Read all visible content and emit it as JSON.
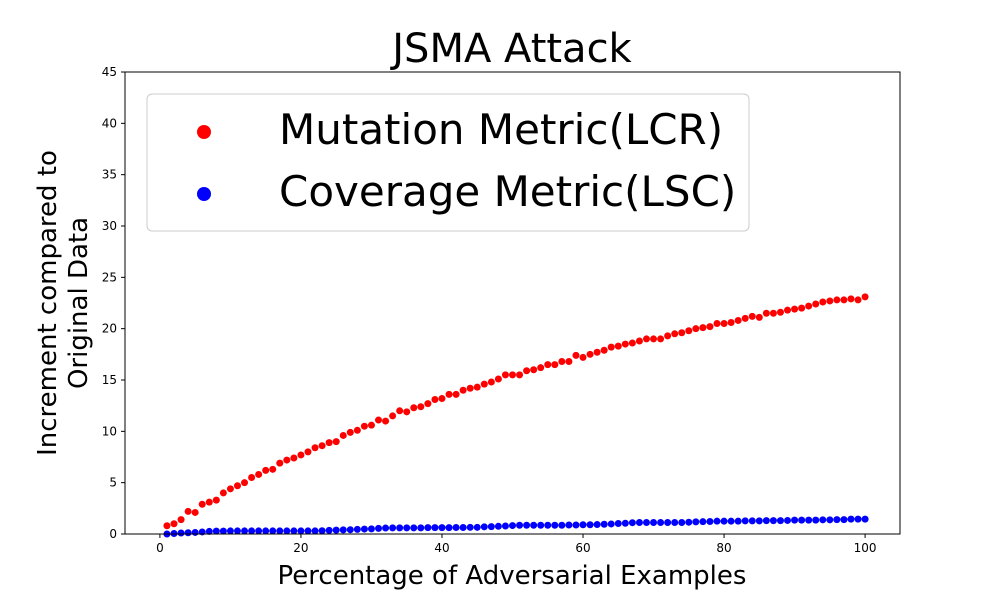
{
  "chart_data": {
    "type": "scatter",
    "title": "JSMA Attack",
    "xlabel": "Percentage of Adversarial Examples",
    "ylabel_lines": [
      "Increment compared to",
      "Original Data"
    ],
    "xlim": [
      -4.95,
      104.95
    ],
    "ylim": [
      0,
      45
    ],
    "xticks": [
      0,
      20,
      40,
      60,
      80,
      100
    ],
    "yticks": [
      0,
      5,
      10,
      15,
      20,
      25,
      30,
      35,
      40,
      45
    ],
    "grid": false,
    "legend_position": "upper-left",
    "series": [
      {
        "name": "Mutation Metric(LCR)",
        "color": "#ff0000",
        "x": [
          1,
          2,
          3,
          4,
          5,
          6,
          7,
          8,
          9,
          10,
          11,
          12,
          13,
          14,
          15,
          16,
          17,
          18,
          19,
          20,
          21,
          22,
          23,
          24,
          25,
          26,
          27,
          28,
          29,
          30,
          31,
          32,
          33,
          34,
          35,
          36,
          37,
          38,
          39,
          40,
          41,
          42,
          43,
          44,
          45,
          46,
          47,
          48,
          49,
          50,
          51,
          52,
          53,
          54,
          55,
          56,
          57,
          58,
          59,
          60,
          61,
          62,
          63,
          64,
          65,
          66,
          67,
          68,
          69,
          70,
          71,
          72,
          73,
          74,
          75,
          76,
          77,
          78,
          79,
          80,
          81,
          82,
          83,
          84,
          85,
          86,
          87,
          88,
          89,
          90,
          91,
          92,
          93,
          94,
          95,
          96,
          97,
          98,
          99,
          100
        ],
        "y": [
          0.8,
          1.0,
          1.4,
          2.2,
          2.1,
          2.9,
          3.1,
          3.3,
          4.0,
          4.4,
          4.7,
          5.0,
          5.5,
          5.8,
          6.2,
          6.3,
          6.9,
          7.2,
          7.4,
          7.7,
          8.0,
          8.4,
          8.6,
          8.9,
          9.0,
          9.6,
          9.9,
          10.1,
          10.5,
          10.6,
          11.1,
          11.0,
          11.5,
          12.0,
          11.9,
          12.3,
          12.4,
          12.7,
          13.1,
          13.2,
          13.6,
          13.6,
          14.0,
          14.2,
          14.3,
          14.6,
          14.8,
          15.1,
          15.5,
          15.5,
          15.5,
          15.9,
          16.0,
          16.2,
          16.5,
          16.5,
          16.8,
          16.8,
          17.4,
          17.2,
          17.5,
          17.7,
          17.9,
          18.2,
          18.3,
          18.5,
          18.6,
          18.8,
          19.0,
          19.0,
          19.0,
          19.3,
          19.5,
          19.6,
          19.8,
          20.0,
          20.1,
          20.2,
          20.5,
          20.5,
          20.6,
          20.8,
          21.0,
          21.2,
          21.1,
          21.5,
          21.5,
          21.6,
          21.8,
          21.9,
          22.0,
          22.2,
          22.4,
          22.6,
          22.7,
          22.8,
          22.8,
          22.9,
          22.8,
          23.1
        ]
      },
      {
        "name": "Coverage Metric(LSC)",
        "color": "#0000ff",
        "x": [
          1,
          2,
          3,
          4,
          5,
          6,
          7,
          8,
          9,
          10,
          11,
          12,
          13,
          14,
          15,
          16,
          17,
          18,
          19,
          20,
          21,
          22,
          23,
          24,
          25,
          26,
          27,
          28,
          29,
          30,
          31,
          32,
          33,
          34,
          35,
          36,
          37,
          38,
          39,
          40,
          41,
          42,
          43,
          44,
          45,
          46,
          47,
          48,
          49,
          50,
          51,
          52,
          53,
          54,
          55,
          56,
          57,
          58,
          59,
          60,
          61,
          62,
          63,
          64,
          65,
          66,
          67,
          68,
          69,
          70,
          71,
          72,
          73,
          74,
          75,
          76,
          77,
          78,
          79,
          80,
          81,
          82,
          83,
          84,
          85,
          86,
          87,
          88,
          89,
          90,
          91,
          92,
          93,
          94,
          95,
          96,
          97,
          98,
          99,
          100
        ],
        "y": [
          0.0,
          0.05,
          0.1,
          0.12,
          0.15,
          0.2,
          0.25,
          0.28,
          0.28,
          0.3,
          0.3,
          0.3,
          0.3,
          0.3,
          0.3,
          0.3,
          0.3,
          0.3,
          0.3,
          0.3,
          0.3,
          0.3,
          0.32,
          0.35,
          0.38,
          0.4,
          0.42,
          0.45,
          0.48,
          0.5,
          0.55,
          0.58,
          0.6,
          0.6,
          0.6,
          0.6,
          0.6,
          0.62,
          0.62,
          0.62,
          0.62,
          0.63,
          0.63,
          0.65,
          0.65,
          0.7,
          0.72,
          0.75,
          0.78,
          0.82,
          0.85,
          0.85,
          0.85,
          0.85,
          0.85,
          0.85,
          0.85,
          0.88,
          0.88,
          0.9,
          0.9,
          0.92,
          0.95,
          0.98,
          1.02,
          1.05,
          1.1,
          1.12,
          1.12,
          1.12,
          1.12,
          1.12,
          1.12,
          1.12,
          1.15,
          1.18,
          1.2,
          1.22,
          1.25,
          1.25,
          1.25,
          1.25,
          1.28,
          1.28,
          1.28,
          1.3,
          1.3,
          1.3,
          1.32,
          1.35,
          1.35,
          1.35,
          1.35,
          1.38,
          1.38,
          1.4,
          1.4,
          1.45,
          1.45,
          1.45
        ]
      }
    ]
  }
}
